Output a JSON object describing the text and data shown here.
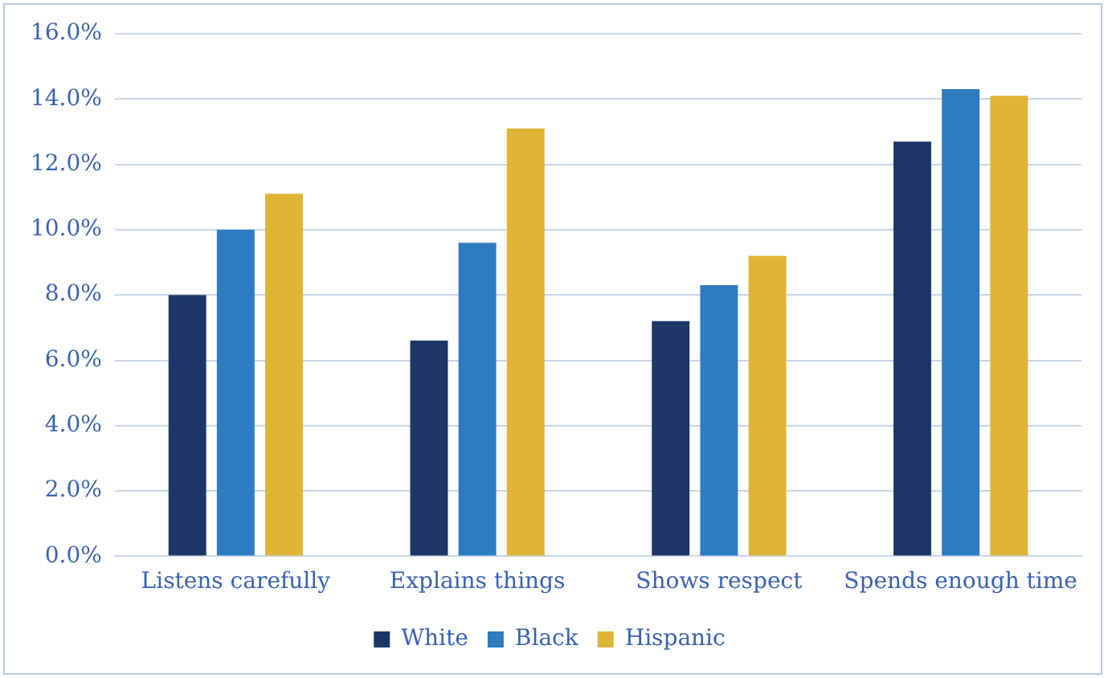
{
  "chart_data": {
    "type": "bar",
    "categories": [
      "Listens carefully",
      "Explains things",
      "Shows respect",
      "Spends enough time"
    ],
    "series": [
      {
        "name": "White",
        "color": "#1c3767",
        "values": [
          8.0,
          6.6,
          7.2,
          12.7
        ]
      },
      {
        "name": "Black",
        "color": "#2e7bc0",
        "values": [
          10.0,
          9.6,
          8.3,
          14.3
        ]
      },
      {
        "name": "Hispanic",
        "color": "#e0b535",
        "values": [
          11.1,
          13.1,
          9.2,
          14.1
        ]
      }
    ],
    "ylim": [
      0,
      16
    ],
    "yticks": [
      {
        "value": 0,
        "label": "0.0%"
      },
      {
        "value": 2,
        "label": "2.0%"
      },
      {
        "value": 4,
        "label": "4.0%"
      },
      {
        "value": 6,
        "label": "6.0%"
      },
      {
        "value": 8,
        "label": "8.0%"
      },
      {
        "value": 10,
        "label": "10.0%"
      },
      {
        "value": 12,
        "label": "12.0%"
      },
      {
        "value": 14,
        "label": "14.0%"
      },
      {
        "value": 16,
        "label": "16.0%"
      }
    ],
    "grid": "y",
    "legend": "bottom"
  }
}
